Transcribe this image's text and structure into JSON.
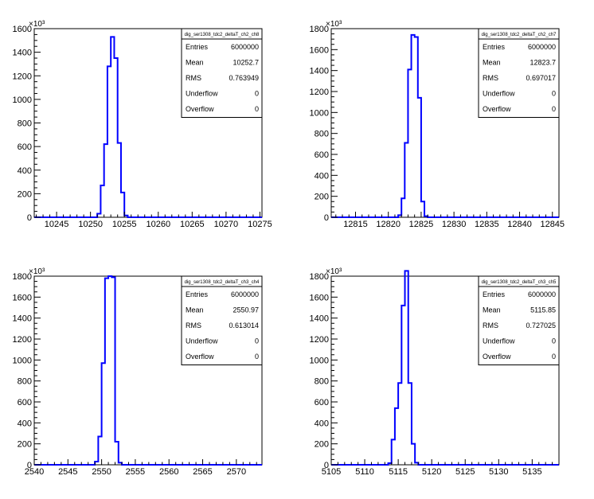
{
  "colors": {
    "histogram_line": "#0000ff",
    "axis": "#000000",
    "background": "#ffffff"
  },
  "chart_data": [
    {
      "type": "histogram",
      "stats": {
        "title": "dig_ser1308_tdc2_deltaT_ch2_ch8",
        "entries": "6000000",
        "mean": "10252.7",
        "rms": "0.763949",
        "underflow": "0",
        "overflow": "0"
      },
      "y_exponent": "×10³",
      "xlim": [
        10241.7,
        10275.3
      ],
      "ylim": [
        0,
        1600
      ],
      "x_ticks": [
        "10245",
        "10250",
        "10255",
        "10260",
        "10265",
        "10270",
        "10275"
      ],
      "y_ticks": [
        "0",
        "200",
        "400",
        "600",
        "800",
        "1000",
        "1200",
        "1400",
        "1600"
      ],
      "bins": [
        10251,
        10251.5,
        10252,
        10252.5,
        10253,
        10253.5,
        10254,
        10254.5,
        10255
      ],
      "counts": [
        30,
        270,
        620,
        1280,
        1530,
        1350,
        630,
        210,
        15
      ]
    },
    {
      "type": "histogram",
      "stats": {
        "title": "dig_ser1308_tdc2_deltaT_ch2_ch7",
        "entries": "6000000",
        "mean": "12823.7",
        "rms": "0.697017",
        "underflow": "0",
        "overflow": "0"
      },
      "y_exponent": "×10³",
      "xlim": [
        12811.3,
        12846.0
      ],
      "ylim": [
        0,
        1800
      ],
      "x_ticks": [
        "12815",
        "12820",
        "12825",
        "12830",
        "12835",
        "12840",
        "12845"
      ],
      "y_ticks": [
        "0",
        "200",
        "400",
        "600",
        "800",
        "1000",
        "1200",
        "1400",
        "1600",
        "1800"
      ],
      "bins": [
        12821.5,
        12822,
        12822.5,
        12823,
        12823.5,
        12824,
        12824.5,
        12825,
        12825.5
      ],
      "counts": [
        20,
        180,
        710,
        1410,
        1740,
        1720,
        1140,
        150,
        10
      ]
    },
    {
      "type": "histogram",
      "stats": {
        "title": "dig_ser1308_tdc2_deltaT_ch3_ch4",
        "entries": "6000000",
        "mean": "2550.97",
        "rms": "0.613014",
        "underflow": "0",
        "overflow": "0"
      },
      "y_exponent": "×10³",
      "xlim": [
        2540,
        2573.8
      ],
      "ylim": [
        0,
        1800
      ],
      "x_ticks": [
        "2540",
        "2545",
        "2550",
        "2555",
        "2560",
        "2565",
        "2570"
      ],
      "y_ticks": [
        "0",
        "200",
        "400",
        "600",
        "800",
        "1000",
        "1200",
        "1400",
        "1600",
        "1800"
      ],
      "bins": [
        2549,
        2549.5,
        2550,
        2550.5,
        2551,
        2551.5,
        2552,
        2552.5
      ],
      "counts": [
        30,
        270,
        970,
        1780,
        1800,
        1790,
        220,
        20
      ]
    },
    {
      "type": "histogram",
      "stats": {
        "title": "dig_ser1308_tdc2_deltaT_ch3_ch5",
        "entries": "6000000",
        "mean": "5115.85",
        "rms": "0.727025",
        "underflow": "0",
        "overflow": "0"
      },
      "y_exponent": "×10³",
      "xlim": [
        5105,
        5139
      ],
      "ylim": [
        0,
        1800
      ],
      "x_ticks": [
        "5105",
        "5110",
        "5115",
        "5120",
        "5125",
        "5130",
        "5135"
      ],
      "y_ticks": [
        "0",
        "200",
        "400",
        "600",
        "800",
        "1000",
        "1200",
        "1400",
        "1600",
        "1800"
      ],
      "bins": [
        5113.5,
        5114,
        5114.5,
        5115,
        5115.5,
        5116,
        5116.5,
        5117,
        5117.5
      ],
      "counts": [
        15,
        240,
        540,
        780,
        1520,
        1850,
        780,
        200,
        20
      ]
    }
  ]
}
